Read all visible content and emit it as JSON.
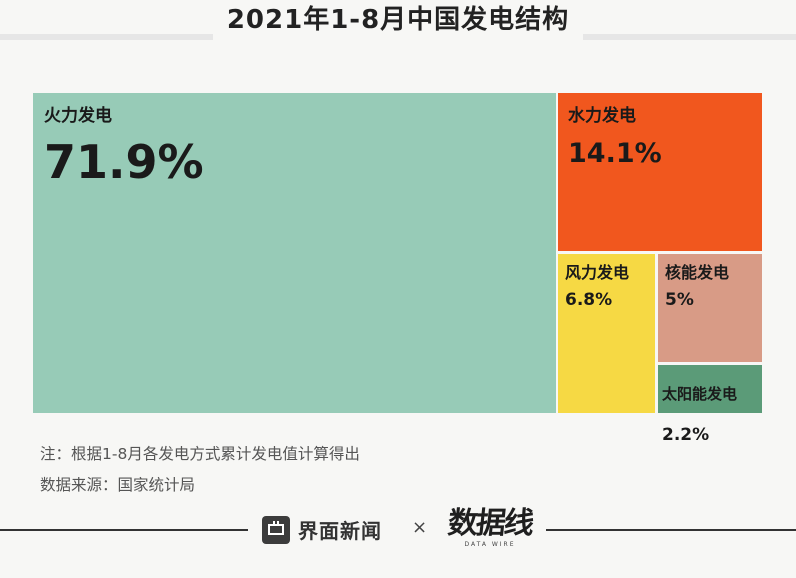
{
  "title": "2021年1-8月中国发电结构",
  "chart_data": {
    "type": "treemap",
    "title": "2021年1-8月中国发电结构",
    "categories": [
      "火力发电",
      "水力发电",
      "风力发电",
      "核能发电",
      "太阳能发电"
    ],
    "values": [
      71.9,
      14.1,
      6.8,
      5,
      2.2
    ],
    "value_labels": [
      "71.9%",
      "14.1%",
      "6.8%",
      "5%",
      "2.2%"
    ],
    "colors": [
      "#97cbb7",
      "#f1571e",
      "#f6d944",
      "#d89b86",
      "#5b9b78"
    ],
    "unit": "%"
  },
  "notes": {
    "line1": "注：根据1-8月各发电方式累计发电值计算得出",
    "line2": "数据来源：国家统计局"
  },
  "footer": {
    "brand1": "界面新闻",
    "times": "×",
    "brand2": "数据线",
    "brand2_sub": "DATA WIRE"
  }
}
